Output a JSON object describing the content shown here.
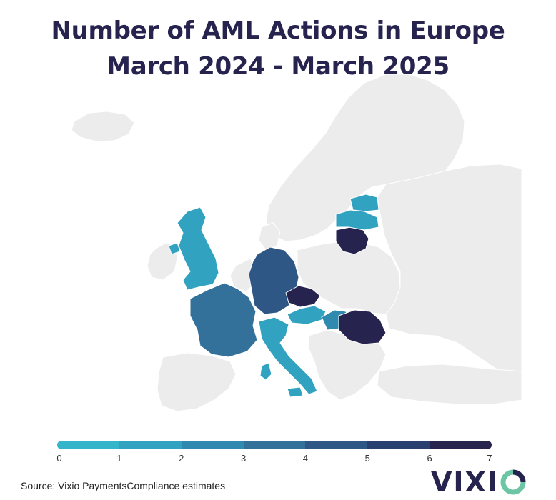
{
  "title": {
    "line1": "Number of AML Actions in Europe",
    "line2": "March 2024 - March 2025"
  },
  "legend": {
    "ticks": [
      "0",
      "1",
      "2",
      "3",
      "4",
      "5",
      "6",
      "7"
    ],
    "colors": [
      "#35b5c9",
      "#31a2bf",
      "#3089ae",
      "#33719a",
      "#2f5786",
      "#28406f",
      "#26234f"
    ]
  },
  "map_data": {
    "values": [
      {
        "country": "United Kingdom",
        "value": 1
      },
      {
        "country": "France",
        "value": 3
      },
      {
        "country": "Germany",
        "value": 4
      },
      {
        "country": "Czechia",
        "value": 7
      },
      {
        "country": "Austria",
        "value": 1
      },
      {
        "country": "Hungary",
        "value": 2
      },
      {
        "country": "Romania",
        "value": 7
      },
      {
        "country": "Italy",
        "value": 1
      },
      {
        "country": "Lithuania",
        "value": 7
      },
      {
        "country": "Latvia",
        "value": 1
      },
      {
        "country": "Estonia",
        "value": 1
      }
    ],
    "land_color": "#ececec",
    "border_color": "#ffffff"
  },
  "source": "Source: Vixio PaymentsCompliance estimates",
  "logo": {
    "text": "VIXI",
    "icon": "o-ring-icon",
    "colors": {
      "text": "#26234f",
      "ring": "#6cc5a4"
    }
  }
}
